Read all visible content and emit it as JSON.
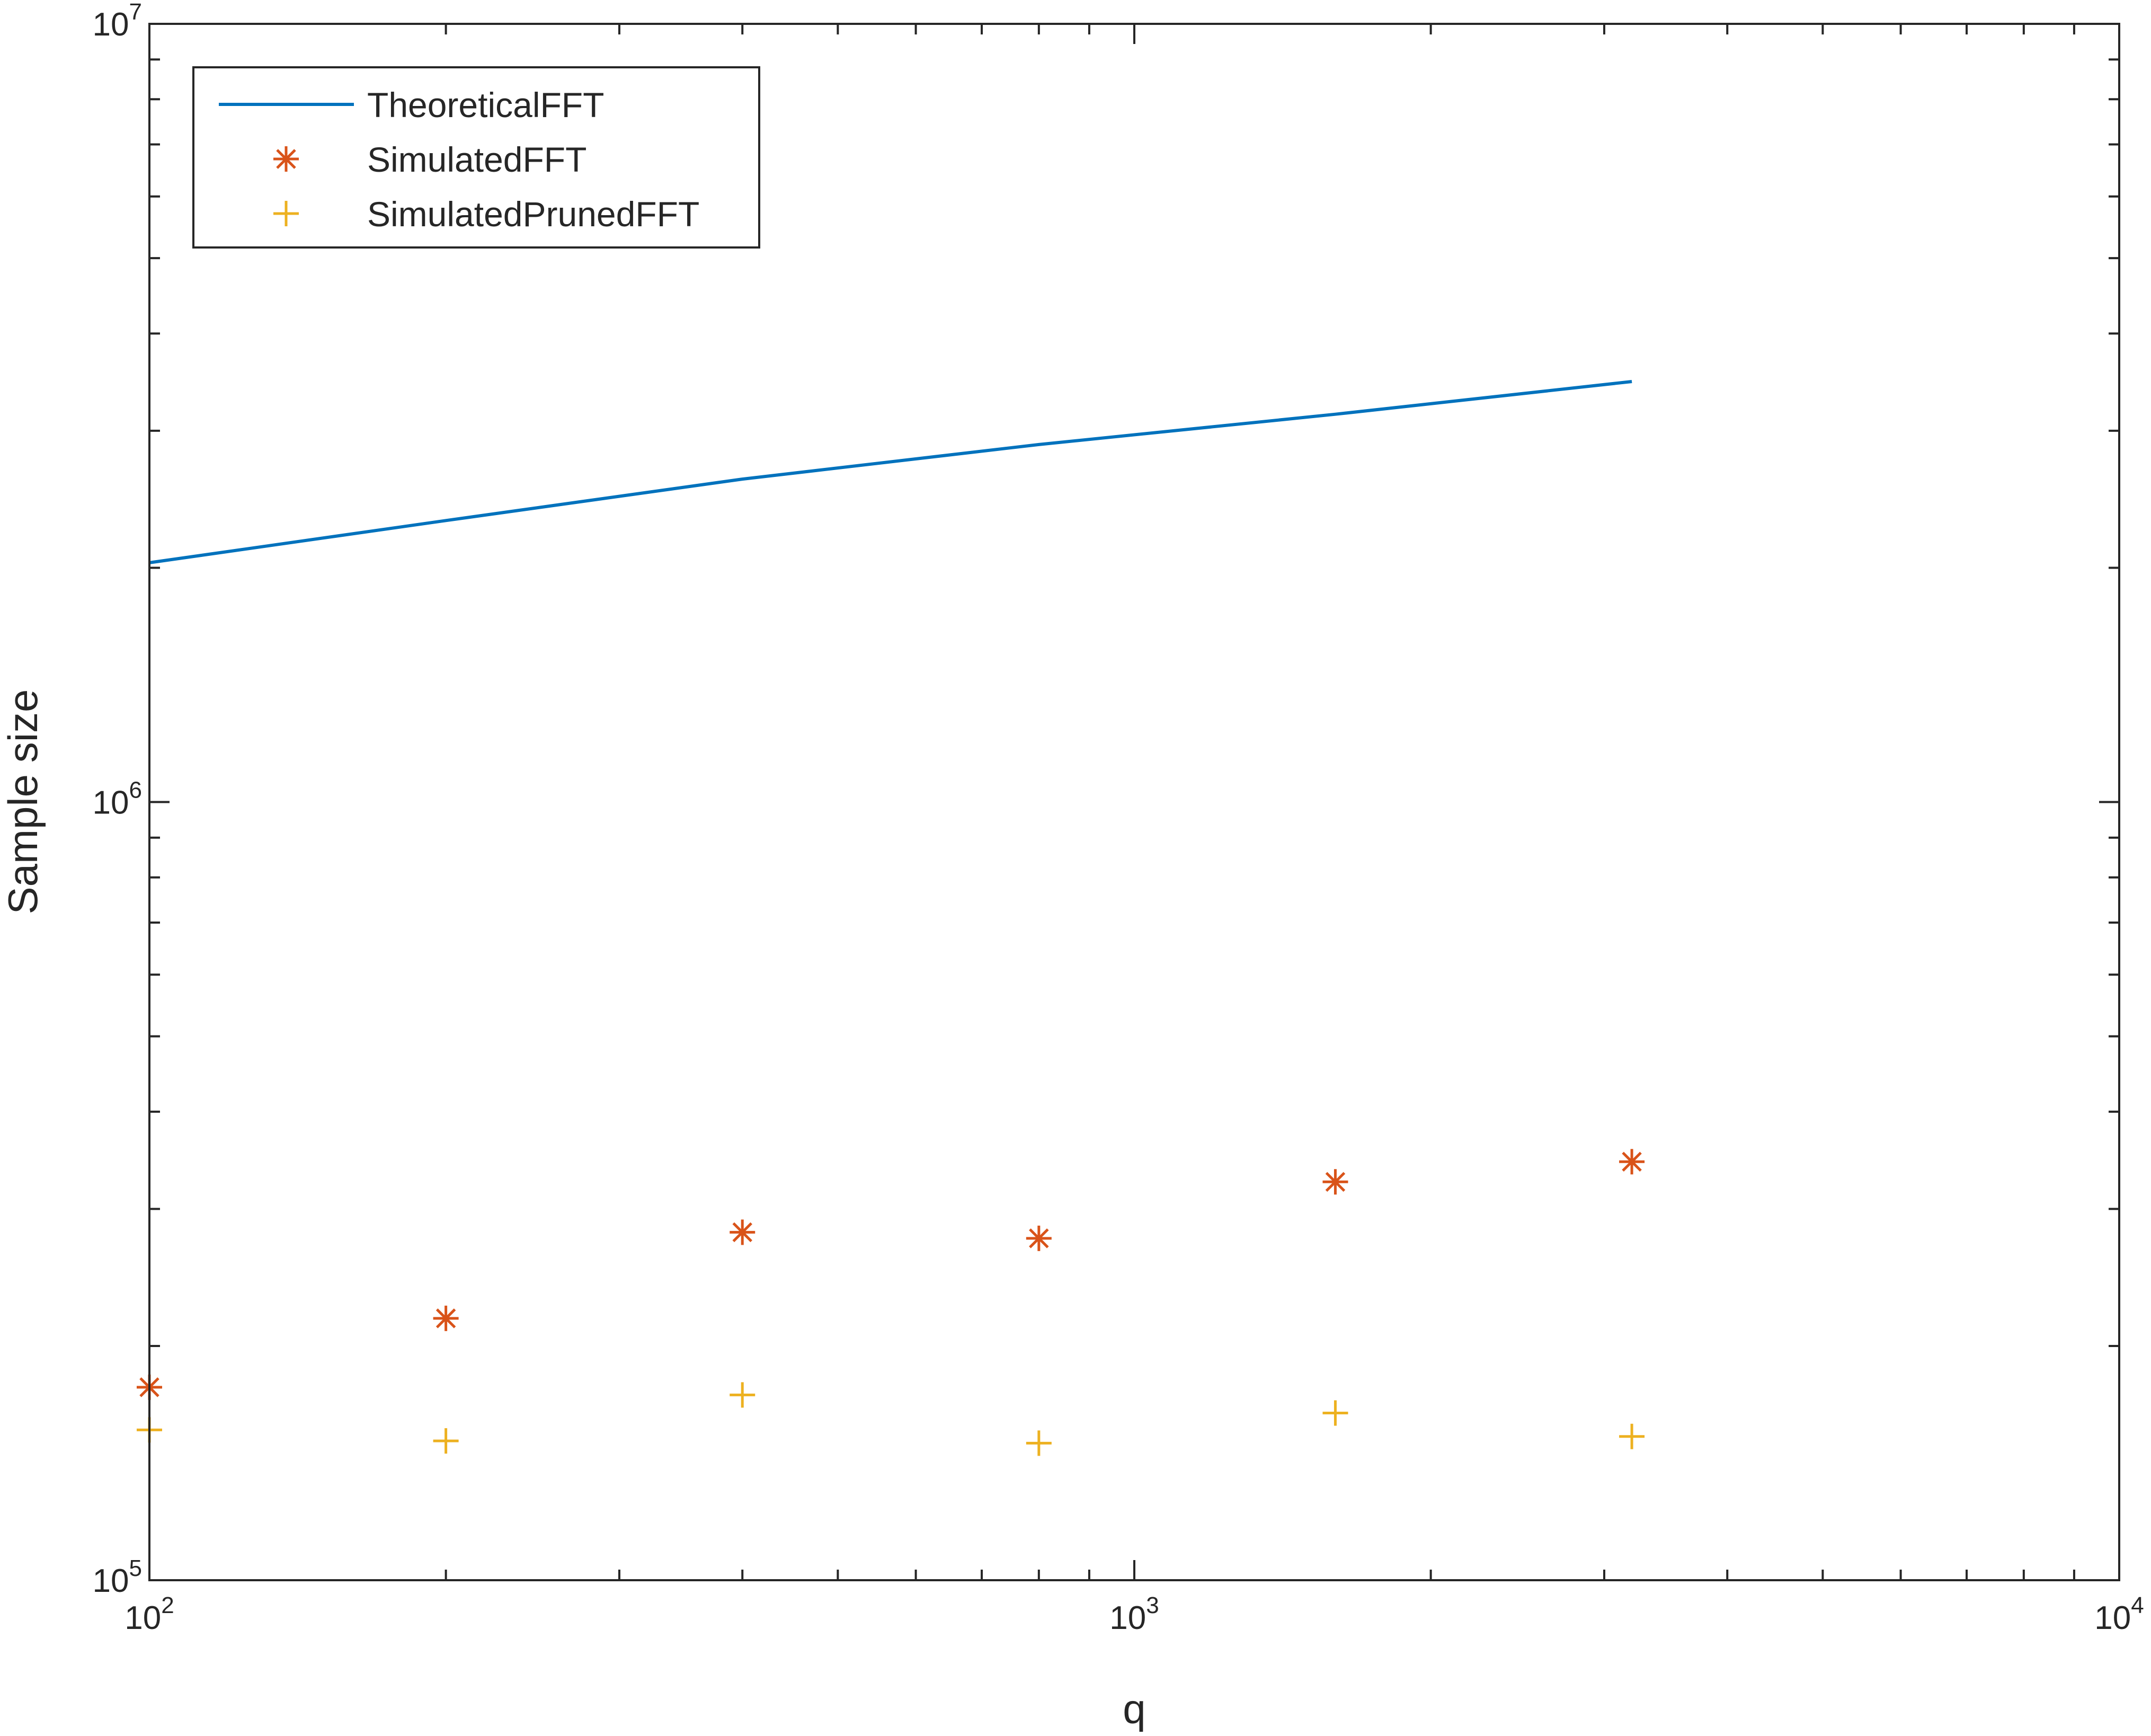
{
  "chart_data": {
    "type": "line",
    "xscale": "log",
    "yscale": "log",
    "xlabel": "q",
    "ylabel": "Sample size",
    "xlim": [
      100,
      10000
    ],
    "ylim": [
      100000,
      10000000
    ],
    "x_ticks": [
      {
        "base": "10",
        "exp": "2",
        "value": 100
      },
      {
        "base": "10",
        "exp": "3",
        "value": 1000
      },
      {
        "base": "10",
        "exp": "4",
        "value": 10000
      }
    ],
    "y_ticks": [
      {
        "base": "10",
        "exp": "5",
        "value": 100000
      },
      {
        "base": "10",
        "exp": "6",
        "value": 1000000
      },
      {
        "base": "10",
        "exp": "7",
        "value": 10000000
      }
    ],
    "grid": false,
    "legend_position": "top-left",
    "series": [
      {
        "name": "TheoreticalFFT",
        "style": "line",
        "color": "#0072BD",
        "x": [
          100,
          200,
          400,
          800,
          1600,
          3200
        ],
        "y": [
          2030000,
          2300000,
          2600000,
          2880000,
          3150000,
          3470000
        ]
      },
      {
        "name": "SimulatedFFT",
        "style": "asterisk",
        "color": "#D95319",
        "x": [
          100,
          200,
          400,
          800,
          1600,
          3200
        ],
        "y": [
          177000,
          217000,
          280000,
          275000,
          325000,
          345000
        ]
      },
      {
        "name": "SimulatedPrunedFFT",
        "style": "plus",
        "color": "#EDB120",
        "x": [
          100,
          200,
          400,
          800,
          1600,
          3200
        ],
        "y": [
          156000,
          151000,
          173000,
          150000,
          164000,
          153000
        ]
      }
    ]
  }
}
